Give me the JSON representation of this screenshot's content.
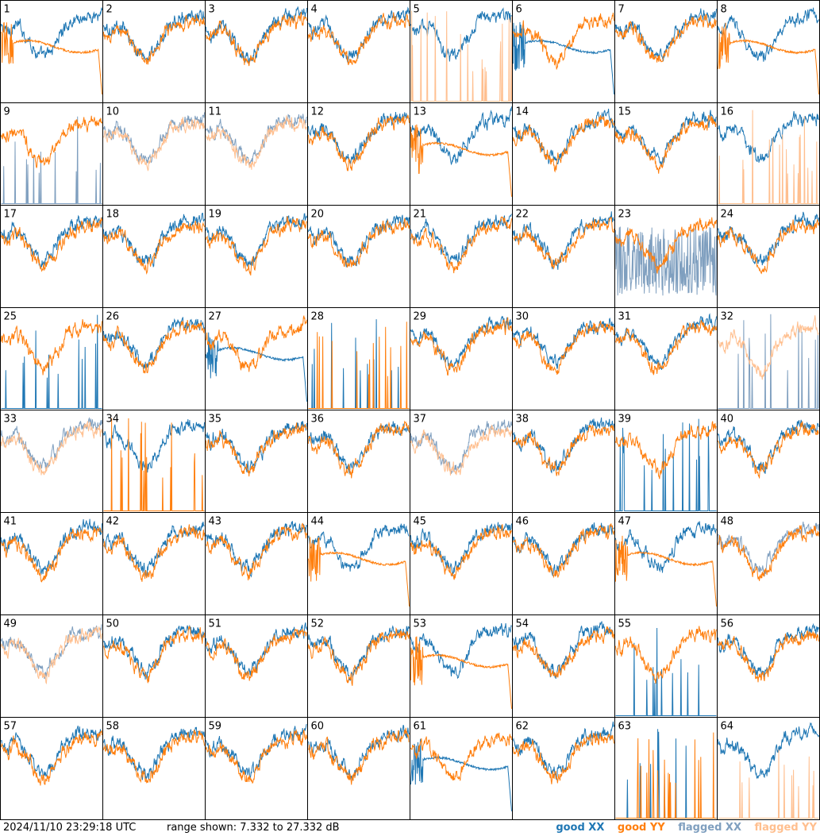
{
  "footer": {
    "timestamp": "2024/11/10 23:29:18 UTC",
    "range_text": "range shown: 7.332 to 27.332 dB"
  },
  "legend": {
    "good_xx": "good XX",
    "good_yy": "good YY",
    "flagged_xx": "flagged XX",
    "flagged_yy": "flagged YY"
  },
  "colors": {
    "good_xx": "#1f77b4",
    "good_yy": "#ff7f0e",
    "flagged_xx": "#7f9fbf",
    "flagged_yy": "#ffbf8f"
  },
  "chart_data": {
    "type": "line",
    "grid": "8x8 small multiples",
    "ylim": [
      7.332,
      27.332
    ],
    "y_unit": "dB",
    "panels": [
      {
        "label": "1",
        "xx": "good",
        "yy": "good",
        "xx_shape": "normal",
        "yy_shape": "decay"
      },
      {
        "label": "2",
        "xx": "good",
        "yy": "good",
        "xx_shape": "normal",
        "yy_shape": "normal"
      },
      {
        "label": "3",
        "xx": "good",
        "yy": "good",
        "xx_shape": "normal",
        "yy_shape": "normal"
      },
      {
        "label": "4",
        "xx": "good",
        "yy": "good",
        "xx_shape": "normal",
        "yy_shape": "normal"
      },
      {
        "label": "5",
        "xx": "good",
        "yy": "flagged",
        "xx_shape": "normal",
        "yy_shape": "spikes"
      },
      {
        "label": "6",
        "xx": "good",
        "yy": "good",
        "xx_shape": "decay",
        "yy_shape": "normal"
      },
      {
        "label": "7",
        "xx": "good",
        "yy": "good",
        "xx_shape": "normal",
        "yy_shape": "normal"
      },
      {
        "label": "8",
        "xx": "good",
        "yy": "good",
        "xx_shape": "normal",
        "yy_shape": "decay"
      },
      {
        "label": "9",
        "xx": "flagged",
        "yy": "good",
        "xx_shape": "spikes",
        "yy_shape": "normal"
      },
      {
        "label": "10",
        "xx": "flagged",
        "yy": "flagged",
        "xx_shape": "normal",
        "yy_shape": "normal"
      },
      {
        "label": "11",
        "xx": "flagged",
        "yy": "flagged",
        "xx_shape": "normal",
        "yy_shape": "normal"
      },
      {
        "label": "12",
        "xx": "good",
        "yy": "good",
        "xx_shape": "normal",
        "yy_shape": "normal"
      },
      {
        "label": "13",
        "xx": "good",
        "yy": "good",
        "xx_shape": "normal",
        "yy_shape": "decay"
      },
      {
        "label": "14",
        "xx": "good",
        "yy": "good",
        "xx_shape": "normal",
        "yy_shape": "normal"
      },
      {
        "label": "15",
        "xx": "good",
        "yy": "good",
        "xx_shape": "normal",
        "yy_shape": "normal"
      },
      {
        "label": "16",
        "xx": "good",
        "yy": "flagged",
        "xx_shape": "normal",
        "yy_shape": "spikes"
      },
      {
        "label": "17",
        "xx": "good",
        "yy": "good",
        "xx_shape": "normal",
        "yy_shape": "normal"
      },
      {
        "label": "18",
        "xx": "good",
        "yy": "good",
        "xx_shape": "normal",
        "yy_shape": "normal"
      },
      {
        "label": "19",
        "xx": "good",
        "yy": "good",
        "xx_shape": "normal",
        "yy_shape": "normal"
      },
      {
        "label": "20",
        "xx": "good",
        "yy": "good",
        "xx_shape": "normal",
        "yy_shape": "normal"
      },
      {
        "label": "21",
        "xx": "good",
        "yy": "good",
        "xx_shape": "normal",
        "yy_shape": "normal"
      },
      {
        "label": "22",
        "xx": "good",
        "yy": "good",
        "xx_shape": "normal",
        "yy_shape": "normal"
      },
      {
        "label": "23",
        "xx": "flagged",
        "yy": "good",
        "xx_shape": "noisy",
        "yy_shape": "normal"
      },
      {
        "label": "24",
        "xx": "good",
        "yy": "good",
        "xx_shape": "normal",
        "yy_shape": "normal"
      },
      {
        "label": "25",
        "xx": "good",
        "yy": "good",
        "xx_shape": "spikes",
        "yy_shape": "normal"
      },
      {
        "label": "26",
        "xx": "good",
        "yy": "good",
        "xx_shape": "normal",
        "yy_shape": "normal"
      },
      {
        "label": "27",
        "xx": "good",
        "yy": "good",
        "xx_shape": "decay",
        "yy_shape": "normal"
      },
      {
        "label": "28",
        "xx": "good",
        "yy": "good",
        "xx_shape": "spikes",
        "yy_shape": "spikes"
      },
      {
        "label": "29",
        "xx": "good",
        "yy": "good",
        "xx_shape": "normal",
        "yy_shape": "normal"
      },
      {
        "label": "30",
        "xx": "good",
        "yy": "good",
        "xx_shape": "normal",
        "yy_shape": "normal"
      },
      {
        "label": "31",
        "xx": "good",
        "yy": "good",
        "xx_shape": "normal",
        "yy_shape": "normal"
      },
      {
        "label": "32",
        "xx": "flagged",
        "yy": "flagged",
        "xx_shape": "spikes",
        "yy_shape": "normal"
      },
      {
        "label": "33",
        "xx": "flagged",
        "yy": "flagged",
        "xx_shape": "normal",
        "yy_shape": "normal"
      },
      {
        "label": "34",
        "xx": "good",
        "yy": "good",
        "xx_shape": "normal",
        "yy_shape": "spikes"
      },
      {
        "label": "35",
        "xx": "good",
        "yy": "good",
        "xx_shape": "normal",
        "yy_shape": "normal"
      },
      {
        "label": "36",
        "xx": "good",
        "yy": "good",
        "xx_shape": "normal",
        "yy_shape": "normal"
      },
      {
        "label": "37",
        "xx": "flagged",
        "yy": "flagged",
        "xx_shape": "normal",
        "yy_shape": "normal"
      },
      {
        "label": "38",
        "xx": "good",
        "yy": "good",
        "xx_shape": "normal",
        "yy_shape": "normal"
      },
      {
        "label": "39",
        "xx": "good",
        "yy": "good",
        "xx_shape": "spikes",
        "yy_shape": "normal"
      },
      {
        "label": "40",
        "xx": "good",
        "yy": "good",
        "xx_shape": "normal",
        "yy_shape": "normal"
      },
      {
        "label": "41",
        "xx": "good",
        "yy": "good",
        "xx_shape": "normal",
        "yy_shape": "normal"
      },
      {
        "label": "42",
        "xx": "good",
        "yy": "good",
        "xx_shape": "normal",
        "yy_shape": "normal"
      },
      {
        "label": "43",
        "xx": "good",
        "yy": "good",
        "xx_shape": "normal",
        "yy_shape": "normal"
      },
      {
        "label": "44",
        "xx": "good",
        "yy": "good",
        "xx_shape": "normal",
        "yy_shape": "decay"
      },
      {
        "label": "45",
        "xx": "good",
        "yy": "good",
        "xx_shape": "normal",
        "yy_shape": "normal"
      },
      {
        "label": "46",
        "xx": "good",
        "yy": "good",
        "xx_shape": "normal",
        "yy_shape": "normal"
      },
      {
        "label": "47",
        "xx": "good",
        "yy": "good",
        "xx_shape": "normal",
        "yy_shape": "decay"
      },
      {
        "label": "48",
        "xx": "flagged",
        "yy": "good",
        "xx_shape": "normal",
        "yy_shape": "normal"
      },
      {
        "label": "49",
        "xx": "flagged",
        "yy": "flagged",
        "xx_shape": "normal",
        "yy_shape": "normal"
      },
      {
        "label": "50",
        "xx": "good",
        "yy": "good",
        "xx_shape": "normal",
        "yy_shape": "normal"
      },
      {
        "label": "51",
        "xx": "good",
        "yy": "good",
        "xx_shape": "normal",
        "yy_shape": "normal"
      },
      {
        "label": "52",
        "xx": "good",
        "yy": "good",
        "xx_shape": "normal",
        "yy_shape": "normal"
      },
      {
        "label": "53",
        "xx": "good",
        "yy": "good",
        "xx_shape": "normal",
        "yy_shape": "decay"
      },
      {
        "label": "54",
        "xx": "good",
        "yy": "good",
        "xx_shape": "normal",
        "yy_shape": "normal"
      },
      {
        "label": "55",
        "xx": "good",
        "yy": "good",
        "xx_shape": "spikes",
        "yy_shape": "normal"
      },
      {
        "label": "56",
        "xx": "good",
        "yy": "good",
        "xx_shape": "normal",
        "yy_shape": "normal"
      },
      {
        "label": "57",
        "xx": "good",
        "yy": "good",
        "xx_shape": "normal",
        "yy_shape": "normal"
      },
      {
        "label": "58",
        "xx": "good",
        "yy": "good",
        "xx_shape": "normal",
        "yy_shape": "normal"
      },
      {
        "label": "59",
        "xx": "good",
        "yy": "good",
        "xx_shape": "normal",
        "yy_shape": "normal"
      },
      {
        "label": "60",
        "xx": "good",
        "yy": "good",
        "xx_shape": "normal",
        "yy_shape": "normal"
      },
      {
        "label": "61",
        "xx": "good",
        "yy": "good",
        "xx_shape": "decay",
        "yy_shape": "normal"
      },
      {
        "label": "62",
        "xx": "good",
        "yy": "good",
        "xx_shape": "normal",
        "yy_shape": "normal"
      },
      {
        "label": "63",
        "xx": "good",
        "yy": "good",
        "xx_shape": "spikes",
        "yy_shape": "spikes"
      },
      {
        "label": "64",
        "xx": "good",
        "yy": "flagged",
        "xx_shape": "normal",
        "yy_shape": "spikes"
      }
    ]
  }
}
